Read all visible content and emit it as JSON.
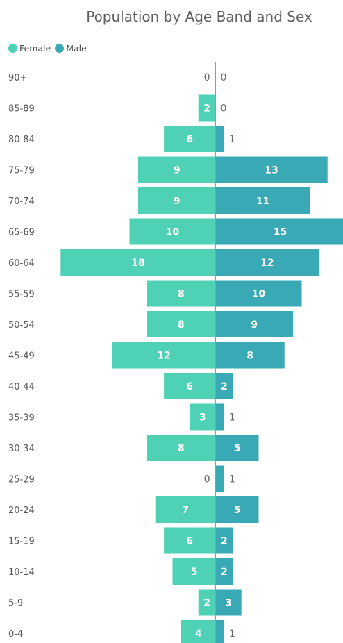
{
  "chart_data": {
    "type": "bar",
    "orientation": "horizontal",
    "layout": "population-pyramid",
    "title": "Population by Age Band and Sex",
    "categories": [
      "90+",
      "85-89",
      "80-84",
      "75-79",
      "70-74",
      "65-69",
      "60-64",
      "55-59",
      "50-54",
      "45-49",
      "40-44",
      "35-39",
      "30-34",
      "25-29",
      "20-24",
      "15-19",
      "10-14",
      "5-9",
      "0-4"
    ],
    "series": [
      {
        "name": "Female",
        "color": "#4fd1b5",
        "side": "left",
        "values": [
          0,
          2,
          6,
          9,
          9,
          10,
          18,
          8,
          8,
          12,
          6,
          3,
          8,
          0,
          7,
          6,
          5,
          2,
          4
        ]
      },
      {
        "name": "Male",
        "color": "#3aa9b6",
        "side": "right",
        "values": [
          0,
          0,
          1,
          13,
          11,
          15,
          12,
          10,
          9,
          8,
          2,
          1,
          5,
          1,
          5,
          2,
          2,
          3,
          1
        ]
      }
    ],
    "legend_position": "top-left",
    "grid": false,
    "data_labels": true
  }
}
